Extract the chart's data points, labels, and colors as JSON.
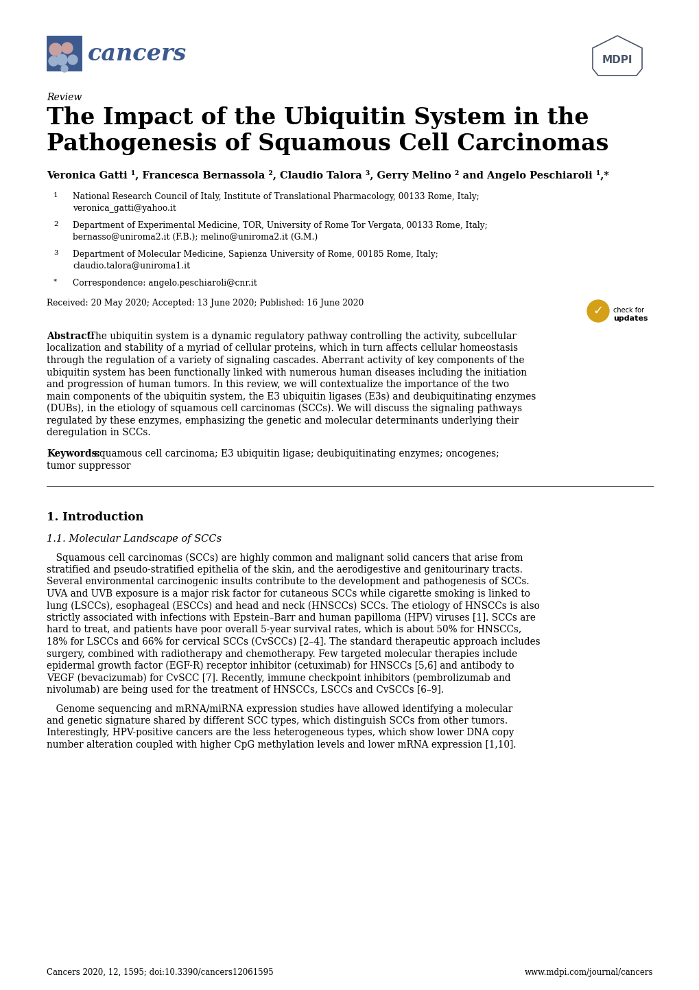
{
  "bg_color": "#ffffff",
  "title_review": "Review",
  "title_main": "The Impact of the Ubiquitin System in the\nPathogenesis of Squamous Cell Carcinomas",
  "authors": "Veronica Gatti ¹, Francesca Bernassola ², Claudio Talora ³, Gerry Melino ² and Angelo Peschiaroli ¹,*",
  "affil1_super": "1",
  "affil1_text": "National Research Council of Italy, Institute of Translational Pharmacology, 00133 Rome, Italy;\nveronica_gatti@yahoo.it",
  "affil2_super": "2",
  "affil2_text": "Department of Experimental Medicine, TOR, University of Rome Tor Vergata, 00133 Rome, Italy;\nbernasso@uniroma2.it (F.B.); melino@uniroma2.it (G.M.)",
  "affil3_super": "3",
  "affil3_text": "Department of Molecular Medicine, Sapienza University of Rome, 00185 Rome, Italy;\nclaudio.talora@uniroma1.it",
  "affil4_super": "*",
  "affil4_text": "Correspondence: angelo.peschiaroli@cnr.it",
  "dates": "Received: 20 May 2020; Accepted: 13 June 2020; Published: 16 June 2020",
  "abstract_label": "Abstract:",
  "abstract_body": "The ubiquitin system is a dynamic regulatory pathway controlling the activity, subcellular localization and stability of a myriad of cellular proteins, which in turn affects cellular homeostasis through the regulation of a variety of signaling cascades. Aberrant activity of key components of the ubiquitin system has been functionally linked with numerous human diseases including the initiation and progression of human tumors. In this review, we will contextualize the importance of the two main components of the ubiquitin system, the E3 ubiquitin ligases (E3s) and deubiquitinating enzymes (DUBs), in the etiology of squamous cell carcinomas (SCCs). We will discuss the signaling pathways regulated by these enzymes, emphasizing the genetic and molecular determinants underlying their deregulation in SCCs.",
  "keywords_label": "Keywords:",
  "keywords_body": "squamous cell carcinoma; E3 ubiquitin ligase; deubiquitinating enzymes; oncogenes; tumor suppressor",
  "section1": "1. Introduction",
  "section1sub": "1.1. Molecular Landscape of SCCs",
  "para1": " Squamous cell carcinomas (SCCs) are highly common and malignant solid cancers that arise from stratified and pseudo-stratified epithelia of the skin, and the aerodigestive and genitourinary tracts. Several environmental carcinogenic insults contribute to the development and pathogenesis of SCCs. UVA and UVB exposure is a major risk factor for cutaneous SCCs while cigarette smoking is linked to lung (LSCCs), esophageal (ESCCs) and head and neck (HNSCCs) SCCs. The etiology of HNSCCs is also strictly associated with infections with Epstein–Barr and human papilloma (HPV) viruses [1]. SCCs are hard to treat, and patients have poor overall 5-year survival rates, which is about 50% for HNSCCs, 18% for LSCCs and 66% for cervical SCCs (CvSCCs) [2–4]. The standard therapeutic approach includes surgery, combined with radiotherapy and chemotherapy. Few targeted molecular therapies include epidermal growth factor (EGF-R) receptor inhibitor (cetuximab) for HNSCCs [5,6] and antibody to VEGF (bevacizumab) for CvSCC [7]. Recently, immune checkpoint inhibitors (pembrolizumab and nivolumab) are being used for the treatment of HNSCCs, LSCCs and CvSCCs [6–9].",
  "para2": " Genome sequencing and mRNA/miRNA expression studies have allowed identifying a molecular and genetic signature shared by different SCC types, which distinguish SCCs from other tumors. Interestingly, HPV-positive cancers are the less heterogeneous types, which show lower DNA copy number alteration coupled with higher CpG methylation levels and lower mRNA expression [1,10].",
  "footer_left": "Cancers 2020, 12, 1595; doi:10.3390/cancers12061595",
  "footer_right": "www.mdpi.com/journal/cancers",
  "cancers_text_color": "#3d5a8e",
  "cancers_logo_bg": "#3d5a8e",
  "mdpi_color": "#4a5568"
}
